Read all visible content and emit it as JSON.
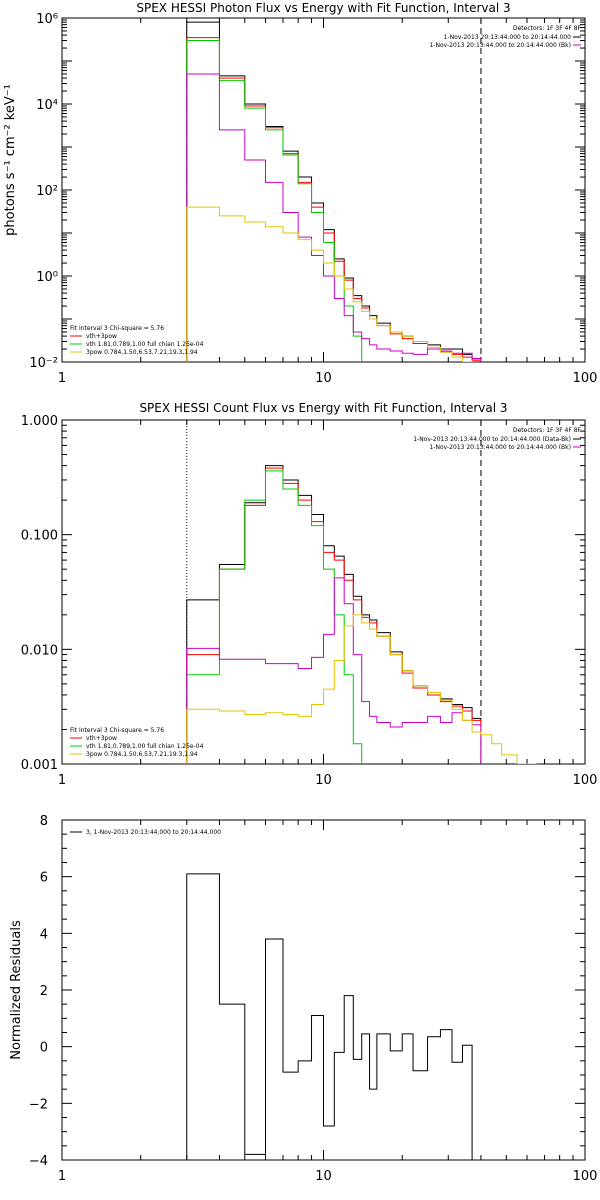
{
  "chart_data": [
    {
      "type": "line",
      "title": "SPEX HESSI Photon Flux vs Energy with Fit Function, Interval 3",
      "ylabel": "photons s⁻¹ cm⁻² keV⁻¹",
      "xlabel": "",
      "xscale": "log",
      "yscale": "log",
      "xlim": [
        1,
        100
      ],
      "ylim": [
        0.01,
        1000000
      ],
      "x_ticks": [
        "1",
        "10",
        "100"
      ],
      "y_ticks": [
        "10⁶",
        "10⁴",
        "10²",
        "10⁰",
        "10⁻²"
      ],
      "vlines": {
        "dotted": 3.0,
        "dashed": 40.0
      },
      "legend_right": {
        "detectors": "Detectors: 1F 3F 4F 8F",
        "lines": [
          {
            "text": "1-Nov-2013 20:13:44.000 to 20:14:44.000",
            "color": "#000000"
          },
          {
            "text": "1-Nov-2013 20:13:44.000 to 20:14:44.000 (Bk)",
            "color": "#cc00cc"
          }
        ]
      },
      "legend_left": {
        "header": "Fit Interval 3   Chi-square = 5.76",
        "lines": [
          {
            "text": "vth+3pow",
            "color": "#ff0000"
          },
          {
            "text": "vth 1.81,0.789,1.00  full chian 1.25e-04",
            "color": "#00cc00"
          },
          {
            "text": "3pow 0.784,1.50,6.53,7.21,19.3,1.94",
            "color": "#e6c200"
          }
        ]
      },
      "edges": [
        3.0,
        4.0,
        5.0,
        6.0,
        7.0,
        8.0,
        9.0,
        10.0,
        11.0,
        12.0,
        13.0,
        14.0,
        15.0,
        16.0,
        18.0,
        20.0,
        22.0,
        25.0,
        28.0,
        31.0,
        34.0,
        37.0,
        40.0,
        44.0,
        48.0,
        55.0,
        65.0
      ],
      "series": [
        {
          "name": "data",
          "color": "#000000",
          "values": [
            800000,
            45000,
            10000,
            3000,
            800,
            200,
            50,
            12,
            2.5,
            0.9,
            0.35,
            0.2,
            0.12,
            0.08,
            0.05,
            0.04,
            0.03,
            0.025,
            0.02,
            0.02,
            0.015,
            0.012
          ]
        },
        {
          "name": "vth+3pow",
          "color": "#ff0000",
          "values": [
            350000,
            40000,
            9000,
            2800,
            700,
            150,
            40,
            10,
            2.2,
            0.8,
            0.3,
            0.18,
            0.1,
            0.07,
            0.045,
            0.035,
            0.027,
            0.02,
            0.017,
            0.015,
            0.013,
            0.011
          ]
        },
        {
          "name": "vth",
          "color": "#00cc00",
          "values": [
            300000,
            35000,
            8000,
            2500,
            650,
            140,
            30,
            6,
            1,
            0.2,
            0.04,
            0.008
          ]
        },
        {
          "name": "bk",
          "color": "#cc00cc",
          "values": [
            50000,
            2500,
            500,
            150,
            30,
            8,
            3,
            1,
            0.3,
            0.12,
            0.05,
            0.035,
            0.025,
            0.02,
            0.018,
            0.016,
            0.015,
            0.02,
            0.018,
            0.016,
            0.016,
            0.012
          ]
        },
        {
          "name": "3pow",
          "color": "#e6c200",
          "values": [
            40,
            25,
            18,
            14,
            10,
            7,
            4,
            2,
            1,
            0.5,
            0.25,
            0.15,
            0.1,
            0.07,
            0.05,
            0.04,
            0.03,
            0.022,
            0.017,
            0.013,
            0.01,
            0.008
          ]
        }
      ]
    },
    {
      "type": "line",
      "title": "SPEX HESSI Count Flux vs Energy with Fit Function, Interval 3",
      "ylabel": "",
      "xlabel": "",
      "xscale": "log",
      "yscale": "log",
      "xlim": [
        1,
        100
      ],
      "ylim": [
        0.001,
        1.0
      ],
      "x_ticks": [
        "1",
        "10",
        "100"
      ],
      "y_ticks": [
        "1.000",
        "0.100",
        "0.010",
        "0.001"
      ],
      "vlines": {
        "dotted": 3.0,
        "dashed": 40.0
      },
      "legend_right": {
        "detectors": "Detectors: 1F 3F 4F 8F",
        "lines": [
          {
            "text": "1-Nov-2013 20:13:44.000 to 20:14:44.000 (Data-Bk)",
            "color": "#000000"
          },
          {
            "text": "1-Nov-2013 20:13:44.000 to 20:14:44.000 (Bk)",
            "color": "#cc00cc"
          }
        ]
      },
      "legend_left": {
        "header": "Fit Interval 3   Chi-square = 5.76",
        "lines": [
          {
            "text": "vth+3pow",
            "color": "#ff0000"
          },
          {
            "text": "vth 1.81,0.789,1.00  full chian 1.25e-04",
            "color": "#00cc00"
          },
          {
            "text": "3pow 0.784,1.50,6.53,7.21,19.3,1.94",
            "color": "#e6c200"
          }
        ]
      },
      "edges": [
        3.0,
        4.0,
        5.0,
        6.0,
        7.0,
        8.0,
        9.0,
        10.0,
        11.0,
        12.0,
        13.0,
        14.0,
        15.0,
        16.0,
        18.0,
        20.0,
        22.0,
        25.0,
        28.0,
        31.0,
        34.0,
        37.0,
        40.0,
        44.0,
        48.0,
        55.0,
        65.0
      ],
      "series": [
        {
          "name": "data",
          "color": "#000000",
          "values": [
            0.027,
            0.055,
            0.19,
            0.4,
            0.3,
            0.22,
            0.15,
            0.08,
            0.065,
            0.045,
            0.029,
            0.02,
            0.018,
            0.014,
            0.0095,
            0.0065,
            0.0048,
            0.0042,
            0.0037,
            0.0033,
            0.0031,
            0.0025
          ]
        },
        {
          "name": "vth+3pow",
          "color": "#ff0000",
          "values": [
            0.009,
            0.05,
            0.18,
            0.38,
            0.28,
            0.2,
            0.13,
            0.07,
            0.06,
            0.04,
            0.027,
            0.019,
            0.017,
            0.013,
            0.009,
            0.0062,
            0.0046,
            0.004,
            0.0035,
            0.0032,
            0.0029,
            0.0024
          ]
        },
        {
          "name": "vth",
          "color": "#00cc00",
          "values": [
            0.006,
            0.05,
            0.2,
            0.36,
            0.25,
            0.18,
            0.12,
            0.05,
            0.02,
            0.006,
            0.0015,
            0.0003
          ]
        },
        {
          "name": "bk",
          "color": "#cc00cc",
          "values": [
            0.0102,
            0.0082,
            0.0082,
            0.0075,
            0.0075,
            0.0068,
            0.0085,
            0.0135,
            0.042,
            0.025,
            0.009,
            0.0035,
            0.0026,
            0.0023,
            0.0021,
            0.0023,
            0.0023,
            0.0026,
            0.0023,
            0.0028,
            0.0024,
            0.0022
          ]
        },
        {
          "name": "3pow",
          "color": "#e6c200",
          "values": [
            0.003,
            0.0029,
            0.0027,
            0.0028,
            0.0027,
            0.0026,
            0.0033,
            0.0045,
            0.008,
            0.016,
            0.02,
            0.017,
            0.015,
            0.013,
            0.009,
            0.0065,
            0.0048,
            0.0042,
            0.0036,
            0.003,
            0.0024,
            0.0019,
            0.0018,
            0.0015,
            0.0012,
            0.001
          ]
        }
      ]
    },
    {
      "type": "line",
      "title": "",
      "ylabel": "Normalized Residuals",
      "xlabel": "",
      "xscale": "log",
      "yscale": "linear",
      "xlim": [
        1,
        100
      ],
      "ylim": [
        -4,
        8
      ],
      "x_ticks": [
        "1",
        "10",
        "100"
      ],
      "y_ticks": [
        "8",
        "6",
        "4",
        "2",
        "0",
        "−2",
        "−4"
      ],
      "legend": "3,  1-Nov-2013 20:13:44.000 to 20:14:44.000",
      "edges": [
        3.0,
        4.0,
        5.0,
        6.0,
        7.0,
        8.0,
        9.0,
        10.0,
        11.0,
        12.0,
        13.0,
        14.0,
        15.0,
        16.0,
        18.0,
        20.0,
        22.0,
        25.0,
        28.0,
        31.0,
        34.0,
        37.0,
        40.0
      ],
      "series": [
        {
          "name": "residuals",
          "color": "#000000",
          "values": [
            6.1,
            1.5,
            -3.8,
            3.8,
            -0.9,
            -0.5,
            1.1,
            -2.8,
            -0.2,
            1.8,
            -0.45,
            0.45,
            -1.5,
            0.45,
            -0.15,
            0.45,
            -0.85,
            0.35,
            0.6,
            -0.55,
            0.05
          ]
        }
      ]
    }
  ]
}
